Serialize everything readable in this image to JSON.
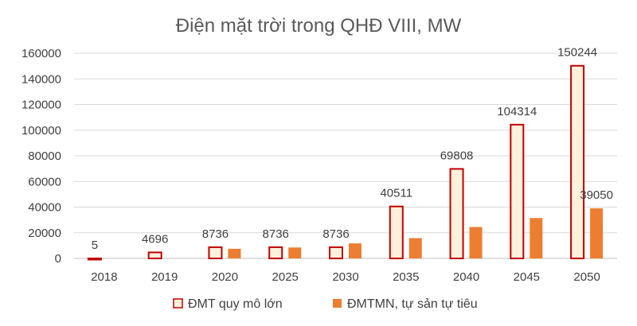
{
  "chart_data": {
    "type": "bar",
    "title": "Điện mặt trời trong QHĐ VIII, MW",
    "categories": [
      "2018",
      "2019",
      "2020",
      "2025",
      "2030",
      "2035",
      "2040",
      "2045",
      "2050"
    ],
    "series": [
      {
        "name": "ĐMT quy mô lớn",
        "values": [
          5,
          4696,
          8736,
          8736,
          8736,
          40511,
          69808,
          104314,
          150244
        ],
        "data_labels": [
          "5",
          "4696",
          "8736",
          "8736",
          "8736",
          "40511",
          "69808",
          "104314",
          "150244"
        ],
        "fill": "#FDF1DC",
        "stroke": "#C00000"
      },
      {
        "name": "ĐMTMN, tự sản tự tiêu",
        "values": [
          0,
          0,
          7500,
          8500,
          11700,
          15800,
          24500,
          31500,
          39050
        ],
        "data_labels": [
          "",
          "",
          "",
          "",
          "",
          "",
          "",
          "",
          "39050"
        ],
        "fill": "#ED7D31"
      }
    ],
    "ylim": [
      0,
      160000
    ],
    "yticks": [
      "0",
      "20000",
      "40000",
      "60000",
      "80000",
      "100000",
      "120000",
      "140000",
      "160000"
    ],
    "grid": true,
    "legend_position": "bottom"
  }
}
